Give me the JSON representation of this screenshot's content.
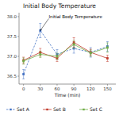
{
  "chart_data": {
    "type": "line",
    "title": "Initial Body Temperature",
    "xlabel": "Time (min)",
    "x": [
      0,
      30,
      60,
      90,
      120,
      150
    ],
    "series": [
      {
        "name": "Set A",
        "color": "#4472c4",
        "line_style": "dashed",
        "marker": "square",
        "values": [
          36.55,
          37.65,
          37.05,
          37.2,
          37.1,
          37.25
        ],
        "yerr": [
          0.12,
          0.18,
          0.12,
          0.12,
          0.12,
          0.12
        ]
      },
      {
        "name": "Set B",
        "color": "#c0392b",
        "line_style": "solid",
        "marker": "square",
        "values": [
          36.9,
          37.1,
          36.95,
          37.35,
          37.1,
          36.95
        ],
        "yerr": [
          0.08,
          0.1,
          0.08,
          0.12,
          0.08,
          0.08
        ]
      },
      {
        "name": "Set C",
        "color": "#70ad47",
        "line_style": "solid",
        "marker": "square",
        "values": [
          36.88,
          37.05,
          37.0,
          37.3,
          37.08,
          37.22
        ],
        "yerr": [
          0.08,
          0.08,
          0.08,
          0.1,
          0.08,
          0.12
        ]
      }
    ],
    "xlim": [
      -8,
      165
    ],
    "ylim": [
      36.3,
      38.1
    ],
    "xticks": [
      0,
      30,
      60,
      90,
      120,
      150
    ],
    "yticks": [
      36.5,
      {
        "value": 37,
        "label": "37.0"
      },
      37.5,
      {
        "value": 38,
        "label": "38.0"
      }
    ],
    "annotations": [
      {
        "text": "Initial Body Temperature",
        "x": 30,
        "y": 37.65,
        "xytext": [
          45,
          37.95
        ]
      }
    ],
    "legend": "bottom",
    "grid": false
  }
}
